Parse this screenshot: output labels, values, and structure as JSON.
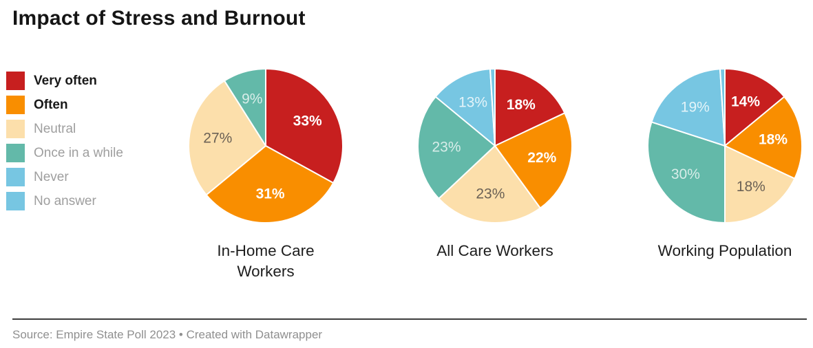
{
  "title": "Impact of Stress and Burnout",
  "legend": {
    "position": "left",
    "items": [
      {
        "label": "Very often",
        "color": "#c71f1f",
        "emphasis": true
      },
      {
        "label": "Often",
        "color": "#f98e00",
        "emphasis": true
      },
      {
        "label": "Neutral",
        "color": "#fcdfab",
        "emphasis": false
      },
      {
        "label": "Once in a while",
        "color": "#63b9a9",
        "emphasis": false
      },
      {
        "label": "Never",
        "color": "#77c6e2",
        "emphasis": false
      },
      {
        "label": "No answer",
        "color": "#77c6e2",
        "emphasis": false
      }
    ]
  },
  "chart_data": {
    "type": "pie",
    "title": "Impact of Stress and Burnout",
    "legend_position": "left",
    "value_suffix": "%",
    "start_angle_deg": 0,
    "direction": "clockwise",
    "categories": [
      "Very often",
      "Often",
      "Neutral",
      "Once in a while",
      "Never",
      "No answer"
    ],
    "colors": [
      "#c71f1f",
      "#f98e00",
      "#fcdfab",
      "#63b9a9",
      "#77c6e2",
      "#77c6e2"
    ],
    "label_styles": [
      {
        "color": "#ffffff",
        "bold": true
      },
      {
        "color": "#ffffff",
        "bold": true
      },
      {
        "color": "#6b6155",
        "bold": false
      },
      {
        "color": "rgba(255,255,255,0.75)",
        "bold": false
      },
      {
        "color": "rgba(255,255,255,0.80)",
        "bold": false
      },
      {
        "color": "rgba(255,255,255,0.80)",
        "bold": false
      }
    ],
    "label_min_value": 3,
    "label_radius_ratio": 0.63,
    "series": [
      {
        "name": "In-Home Care Workers",
        "name_lines": [
          "In-Home Care",
          "Workers"
        ],
        "values": [
          33,
          31,
          27,
          9,
          0,
          0
        ]
      },
      {
        "name": "All Care Workers",
        "name_lines": [
          "All Care Workers"
        ],
        "values": [
          18,
          22,
          23,
          23,
          13,
          1
        ]
      },
      {
        "name": "Working Population",
        "name_lines": [
          "Working Population"
        ],
        "values": [
          14,
          18,
          18,
          30,
          19,
          1
        ]
      }
    ]
  },
  "footer": {
    "source_text": "Source: Empire State Poll 2023 • Created with Datawrapper"
  }
}
